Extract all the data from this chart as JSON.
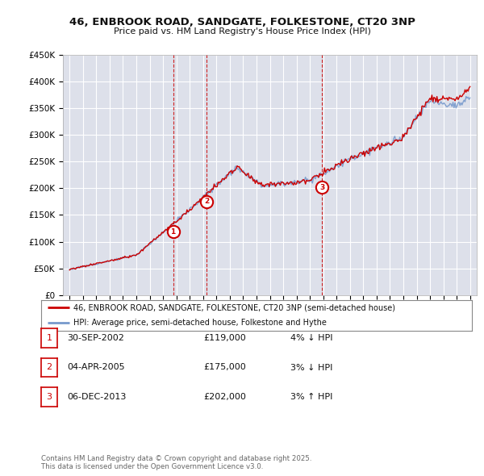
{
  "title_line1": "46, ENBROOK ROAD, SANDGATE, FOLKESTONE, CT20 3NP",
  "title_line2": "Price paid vs. HM Land Registry's House Price Index (HPI)",
  "ylim": [
    0,
    450000
  ],
  "yticks": [
    0,
    50000,
    100000,
    150000,
    200000,
    250000,
    300000,
    350000,
    400000,
    450000
  ],
  "ytick_labels": [
    "£0",
    "£50K",
    "£100K",
    "£150K",
    "£200K",
    "£250K",
    "£300K",
    "£350K",
    "£400K",
    "£450K"
  ],
  "background_color": "#ffffff",
  "plot_bg_color": "#dde0ea",
  "grid_color": "#ffffff",
  "line1_color": "#cc0000",
  "line2_color": "#7799cc",
  "transaction_dates": [
    2002.75,
    2005.25,
    2013.92
  ],
  "transaction_labels": [
    "1",
    "2",
    "3"
  ],
  "transaction_prices": [
    119000,
    175000,
    202000
  ],
  "transaction_marker_color": "#cc0000",
  "dashed_line_color": "#cc0000",
  "legend_line1": "46, ENBROOK ROAD, SANDGATE, FOLKESTONE, CT20 3NP (semi-detached house)",
  "legend_line2": "HPI: Average price, semi-detached house, Folkestone and Hythe",
  "table_rows": [
    {
      "num": "1",
      "date": "30-SEP-2002",
      "price": "£119,000",
      "hpi": "4% ↓ HPI"
    },
    {
      "num": "2",
      "date": "04-APR-2005",
      "price": "£175,000",
      "hpi": "3% ↓ HPI"
    },
    {
      "num": "3",
      "date": "06-DEC-2013",
      "price": "£202,000",
      "hpi": "3% ↑ HPI"
    }
  ],
  "copyright": "Contains HM Land Registry data © Crown copyright and database right 2025.\nThis data is licensed under the Open Government Licence v3.0.",
  "xmin": 1994.5,
  "xmax": 2025.5,
  "xticks": [
    1995,
    1996,
    1997,
    1998,
    1999,
    2000,
    2001,
    2002,
    2003,
    2004,
    2005,
    2006,
    2007,
    2008,
    2009,
    2010,
    2011,
    2012,
    2013,
    2014,
    2015,
    2016,
    2017,
    2018,
    2019,
    2020,
    2021,
    2022,
    2023,
    2024,
    2025
  ]
}
